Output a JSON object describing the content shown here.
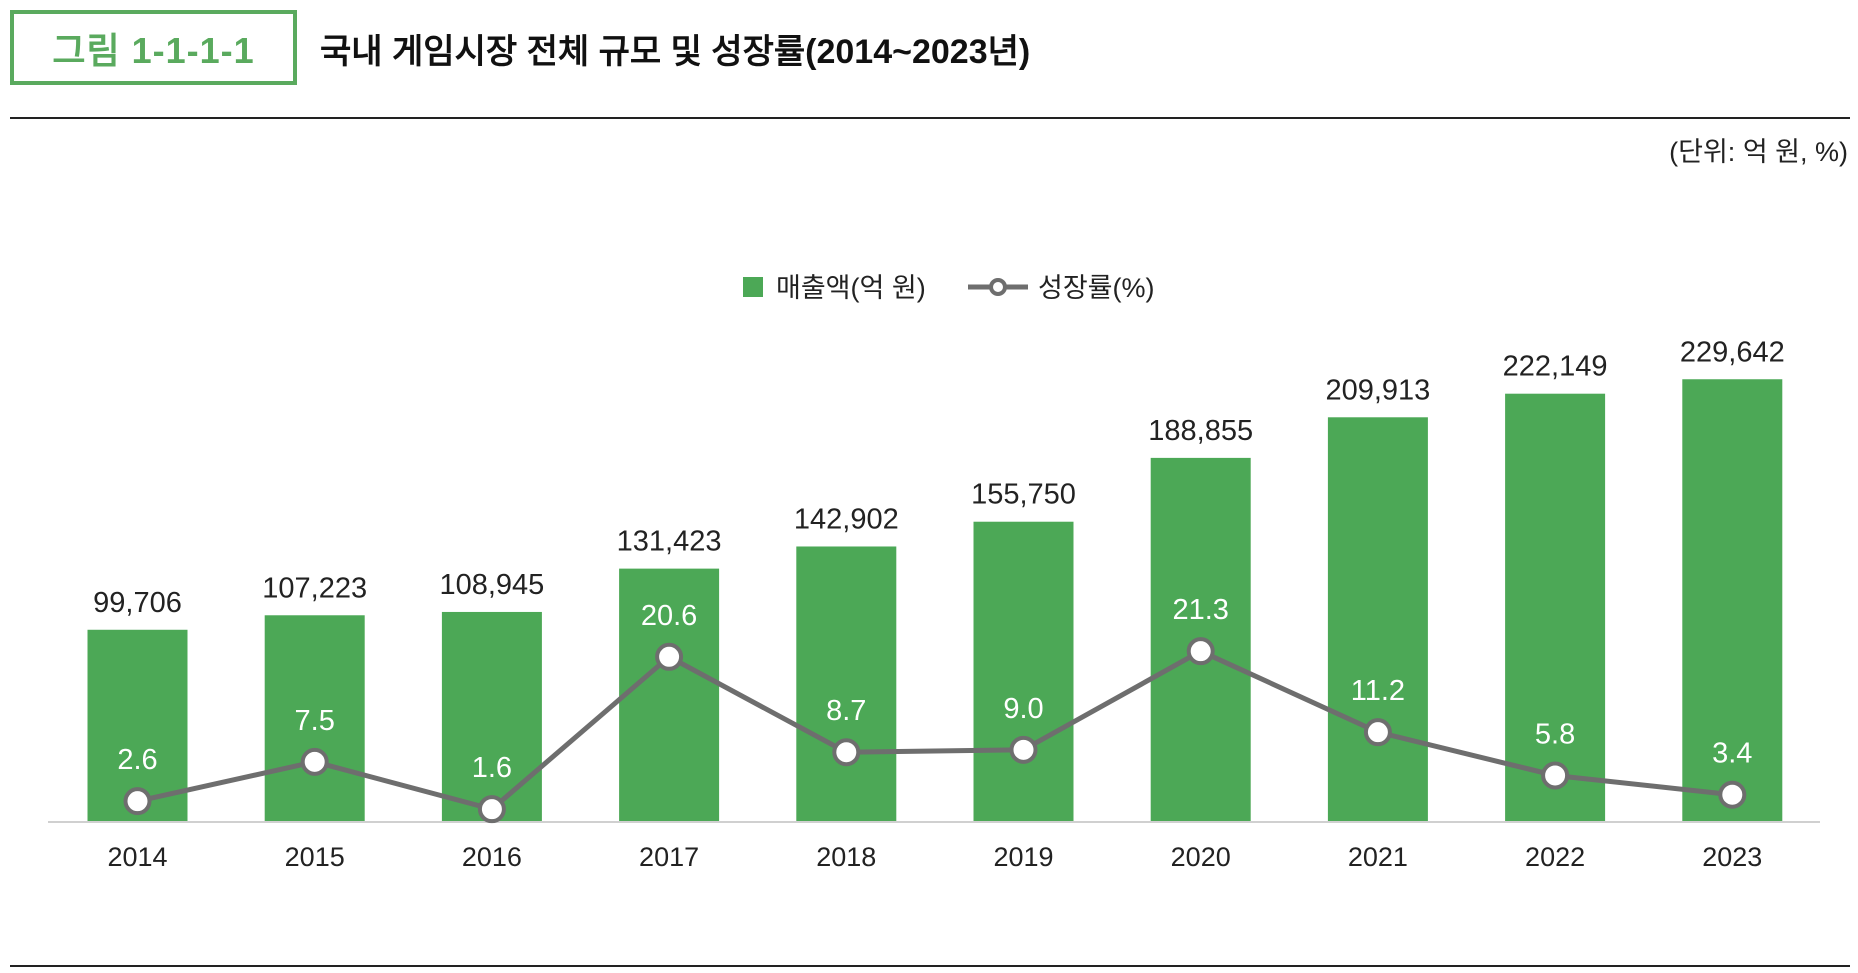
{
  "figure_label": "그림 1-1-1-1",
  "title": "국내 게임시장 전체 규모 및 성장률(2014~2023년)",
  "unit": "(단위: 억 원, %)",
  "colors": {
    "bar": "#4ca856",
    "line": "#6e6e6e",
    "accent": "#5aaa5e"
  },
  "chart_data": {
    "type": "bar+line",
    "title": "국내 게임시장 전체 규모 및 성장률(2014~2023년)",
    "categories": [
      "2014",
      "2015",
      "2016",
      "2017",
      "2018",
      "2019",
      "2020",
      "2021",
      "2022",
      "2023"
    ],
    "series": [
      {
        "name": "매출액(억 원)",
        "type": "bar",
        "values": [
          99706,
          107223,
          108945,
          131423,
          142902,
          155750,
          188855,
          209913,
          222149,
          229642
        ],
        "labels": [
          "99,706",
          "107,223",
          "108,945",
          "131,423",
          "142,902",
          "155,750",
          "188,855",
          "209,913",
          "222,149",
          "229,642"
        ]
      },
      {
        "name": "성장률(%)",
        "type": "line",
        "values": [
          2.6,
          7.5,
          1.6,
          20.6,
          8.7,
          9.0,
          21.3,
          11.2,
          5.8,
          3.4
        ],
        "labels": [
          "2.6",
          "7.5",
          "1.6",
          "20.6",
          "8.7",
          "9.0",
          "21.3",
          "11.2",
          "5.8",
          "3.4"
        ]
      }
    ],
    "legend_position": "top-center",
    "grid": false
  }
}
